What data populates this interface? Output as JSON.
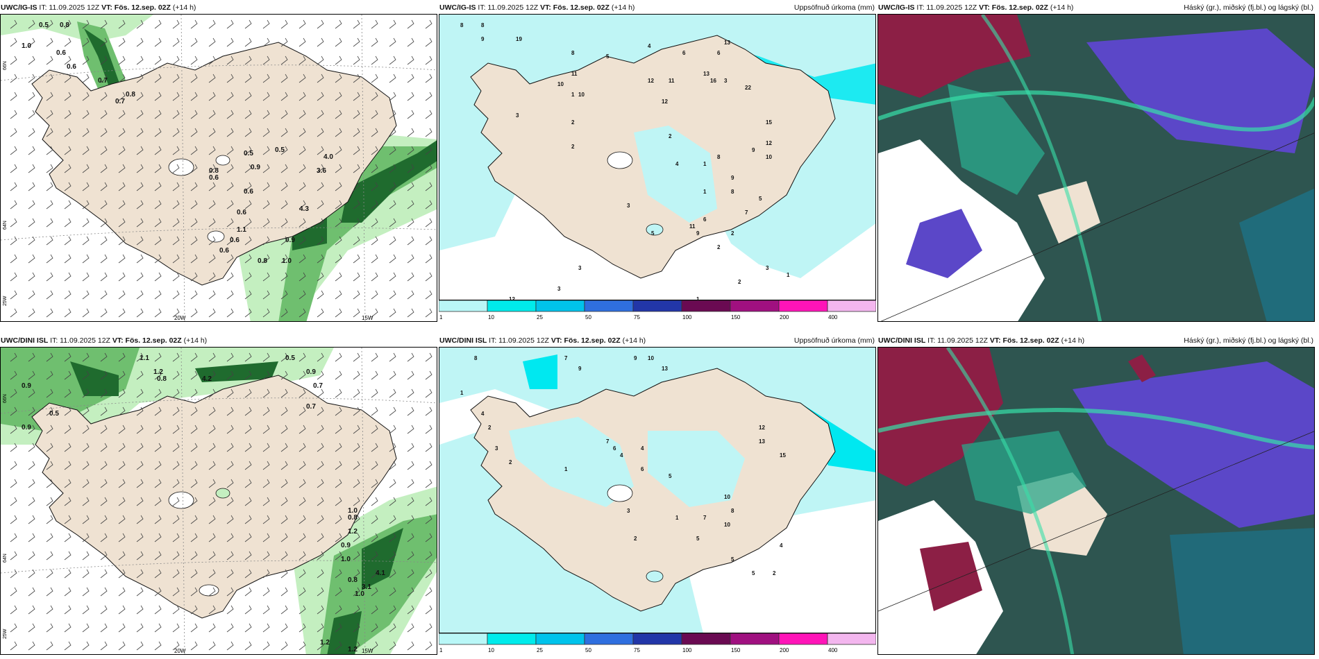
{
  "panels": {
    "p1": {
      "model": "UWC/IG-IS",
      "it": "IT: 11.09.2025 12Z",
      "vt": "VT: Fös. 12.sep. 02Z",
      "lead": "(+14 h)",
      "field": "",
      "axis_labels": {
        "lon1": "20W",
        "lon2": "15W",
        "lat_top": "66N",
        "lat_mid": "64N",
        "lat_bot": "25W",
        "lat_top_r": "66N",
        "lat_mid_r": "64N"
      },
      "values": [
        "0.5",
        "0.8",
        "0.6",
        "1.0",
        "0.6",
        "0.7",
        "0.8",
        "0.7",
        "0.5",
        "0.5",
        "0.9",
        "0.8",
        "0.6",
        "0.6",
        "0.6",
        "1.1",
        "0.6",
        "0.6",
        "4.0",
        "3.6",
        "4.3",
        "1.0",
        "0.8",
        "0.9"
      ]
    },
    "p2": {
      "model": "UWC/IG-IS",
      "it": "IT: 11.09.2025 12Z",
      "vt": "VT: Fös. 12.sep. 02Z",
      "lead": "(+14 h)",
      "field": "Uppsöfnuð úrkoma (mm)",
      "values": [
        "8",
        "8",
        "9",
        "19",
        "8",
        "11",
        "10",
        "10",
        "5",
        "4",
        "6",
        "6",
        "3",
        "12",
        "12",
        "13",
        "13",
        "11",
        "16",
        "22",
        "3",
        "1",
        "2",
        "2",
        "1",
        "1",
        "2",
        "15",
        "12",
        "10",
        "4",
        "8",
        "9",
        "8",
        "7",
        "9",
        "5",
        "6",
        "11",
        "9",
        "5",
        "3",
        "3",
        "3",
        "12",
        "1",
        "2",
        "2",
        "3",
        "1",
        "2"
      ]
    },
    "p3": {
      "model": "UWC/IG-IS",
      "it": "IT: 11.09.2025 12Z",
      "vt": "VT: Fös. 12.sep. 02Z",
      "lead": "(+14 h)",
      "field": "Háský (gr.), miðský (fj.bl.) og lágský (bl.)"
    },
    "p4": {
      "model": "UWC/DINI ISL",
      "it": "IT: 11.09.2025 12Z",
      "vt": "VT: Fös. 12.sep. 02Z",
      "lead": "(+14 h)",
      "field": "",
      "axis_labels": {
        "lon1": "20W",
        "lon2": "15W",
        "lat_top": "66N",
        "lat_mid": "64N",
        "lat_bot": "25W",
        "lat_top_r": "66N",
        "lat_mid_r": "64N"
      },
      "values": [
        "1.1",
        "1.2",
        "0.8",
        "4.2",
        "0.5",
        "0.9",
        "0.9",
        "0.7",
        "0.5",
        "0.9",
        "0.7",
        "1.0",
        "0.8",
        "1.2",
        "0.9",
        "1.0",
        "0.8",
        "1.0",
        "4.1",
        "3.1",
        "1.2",
        "1.2"
      ]
    },
    "p5": {
      "model": "UWC/DINI ISL",
      "it": "IT: 11.09.2025 12Z",
      "vt": "VT: Fös. 12.sep. 02Z",
      "lead": "(+14 h)",
      "field": "Uppsöfnuð úrkoma (mm)",
      "values": [
        "8",
        "7",
        "9",
        "9",
        "10",
        "13",
        "1",
        "4",
        "2",
        "3",
        "2",
        "1",
        "7",
        "6",
        "4",
        "4",
        "6",
        "5",
        "12",
        "13",
        "15",
        "10",
        "8",
        "10",
        "7",
        "5",
        "4",
        "1",
        "3",
        "2",
        "5",
        "5",
        "2"
      ]
    },
    "p6": {
      "model": "UWC/DINI ISL",
      "it": "IT: 11.09.2025 12Z",
      "vt": "VT: Fös. 12.sep. 02Z",
      "lead": "(+14 h)",
      "field": "Háský (gr.), miðský (fj.bl.) og lágský (bl.)"
    }
  },
  "colorbar": {
    "labels": [
      "1",
      "10",
      "25",
      "50",
      "75",
      "100",
      "150",
      "200",
      "400"
    ],
    "colors": [
      "#b9f7f7",
      "#00ebeb",
      "#00c3eb",
      "#2f6fdf",
      "#2236a8",
      "#6a0a52",
      "#a01080",
      "#ff14b8",
      "#f3b6ee"
    ]
  },
  "colors": {
    "land": "#efe2d2",
    "precip_light": "#bff5f5",
    "precip_mid": "#00e8f0",
    "green_light": "#c4efc0",
    "green_mid": "#6fbf6f",
    "green_dark": "#1f6b2e",
    "cloud_dark": "#2e5550",
    "cloud_purple": "#5b47c8",
    "cloud_teal": "#2aa58a",
    "cloud_red": "#8c1f45"
  }
}
